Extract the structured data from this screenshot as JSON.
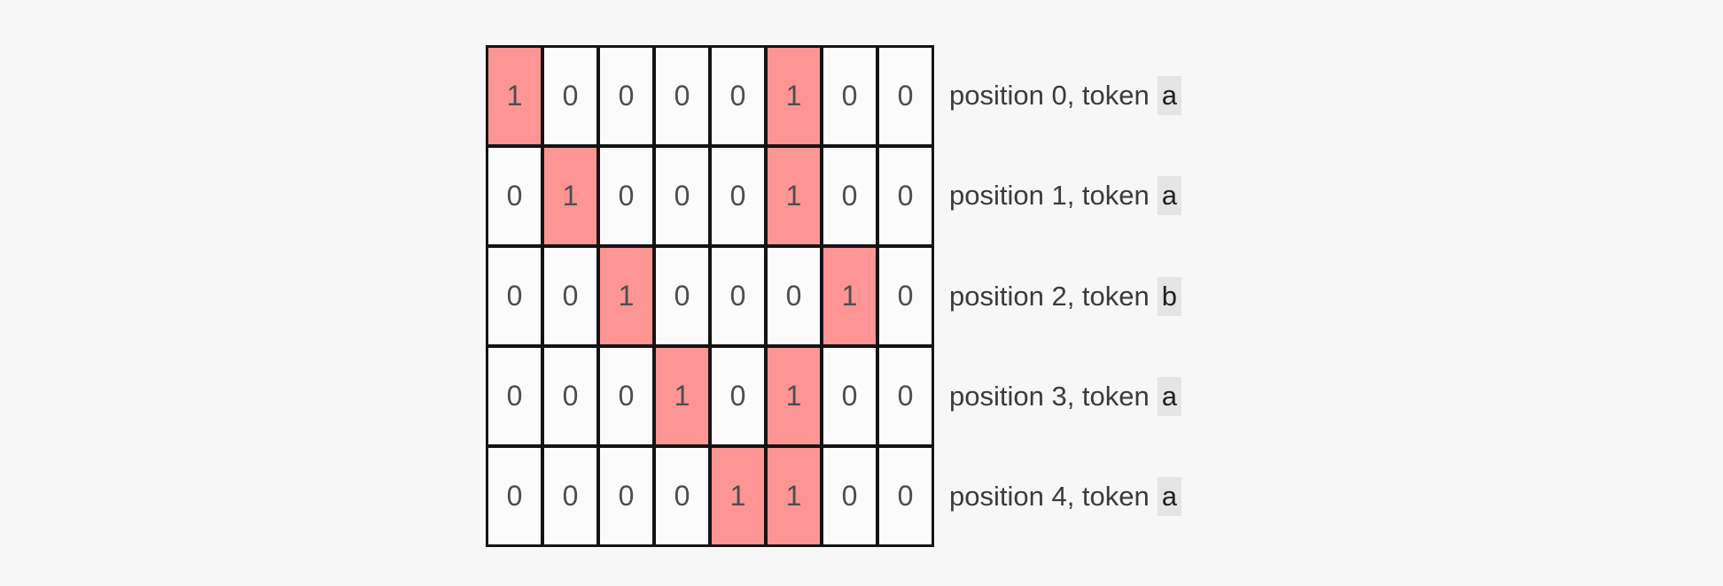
{
  "colors": {
    "page_background": "#f7f7f7",
    "cell_background": "#fbfbfb",
    "highlight": "#fd9595",
    "grid_border": "#141414",
    "digit_text": "#4d4d4d",
    "label_text": "#3b3b3b",
    "token_background": "#e4e4e4",
    "token_text": "#1f1f1f"
  },
  "matrix": {
    "num_rows": 5,
    "num_columns": 8,
    "rows": [
      {
        "values": [
          "1",
          "0",
          "0",
          "0",
          "0",
          "1",
          "0",
          "0"
        ],
        "highlighted_columns": [
          0,
          5
        ],
        "label_prefix": "position 0, token",
        "token": "a"
      },
      {
        "values": [
          "0",
          "1",
          "0",
          "0",
          "0",
          "1",
          "0",
          "0"
        ],
        "highlighted_columns": [
          1,
          5
        ],
        "label_prefix": "position 1, token",
        "token": "a"
      },
      {
        "values": [
          "0",
          "0",
          "1",
          "0",
          "0",
          "0",
          "1",
          "0"
        ],
        "highlighted_columns": [
          2,
          6
        ],
        "label_prefix": "position 2, token",
        "token": "b"
      },
      {
        "values": [
          "0",
          "0",
          "0",
          "1",
          "0",
          "1",
          "0",
          "0"
        ],
        "highlighted_columns": [
          3,
          5
        ],
        "label_prefix": "position 3, token",
        "token": "a"
      },
      {
        "values": [
          "0",
          "0",
          "0",
          "0",
          "1",
          "1",
          "0",
          "0"
        ],
        "highlighted_columns": [
          4,
          5
        ],
        "label_prefix": "position 4, token",
        "token": "a"
      }
    ]
  }
}
